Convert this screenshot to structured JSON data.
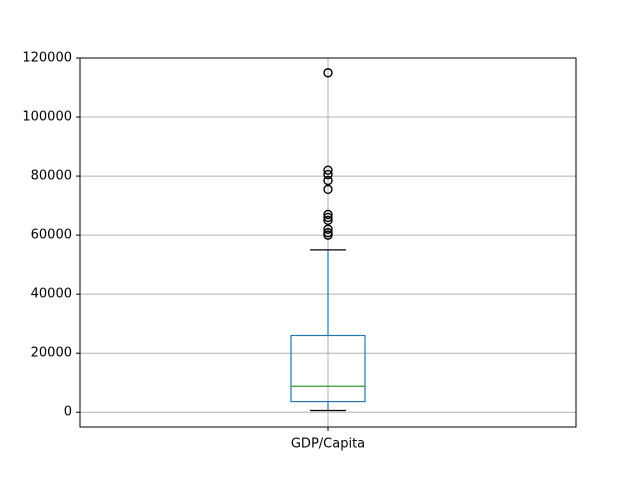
{
  "chart_data": {
    "type": "box",
    "title": "",
    "xlabel": "",
    "ylabel": "",
    "categories": [
      "GDP/Capita"
    ],
    "ylim": [
      -5000,
      120000
    ],
    "y_ticks": [
      0,
      20000,
      40000,
      60000,
      80000,
      100000,
      120000
    ],
    "y_tick_labels": [
      "0",
      "20000",
      "40000",
      "60000",
      "80000",
      "100000",
      "120000"
    ],
    "grid": true,
    "box": {
      "whisker_low": 600,
      "q1": 3600,
      "median": 8800,
      "q3": 26000,
      "whisker_high": 55000,
      "outliers": [
        60000,
        60800,
        62000,
        65000,
        66000,
        67000,
        75500,
        78500,
        80500,
        82000,
        115000
      ]
    },
    "colors": {
      "box": "#1f77b4",
      "median": "#2ca02c",
      "whisker_cap": "#000000",
      "outlier": "#000000",
      "grid": "#b0b0b0"
    }
  }
}
